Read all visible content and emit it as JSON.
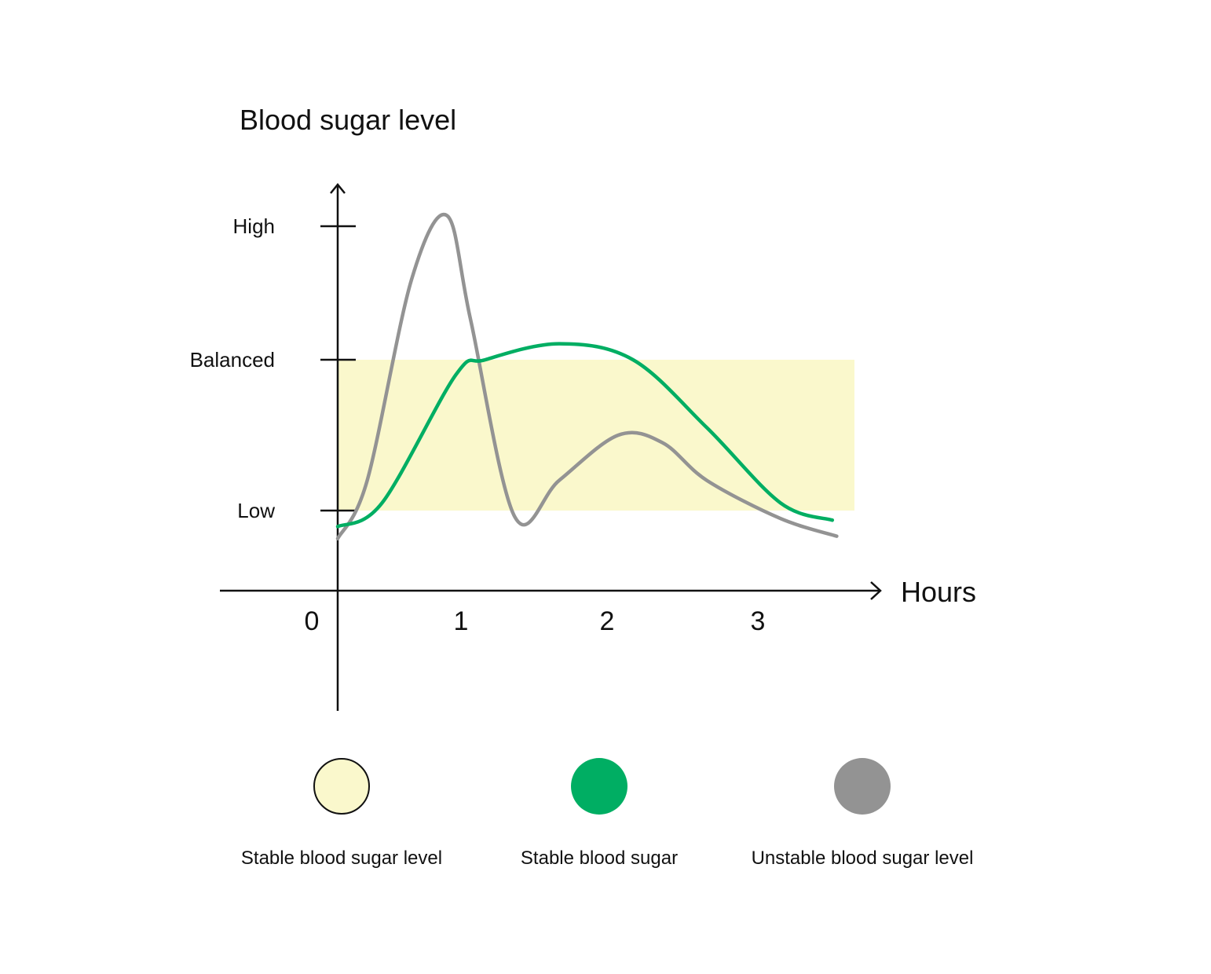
{
  "colors": {
    "band": "#FAF8CC",
    "stable": "#00AE63",
    "unstable": "#939393",
    "axis": "#111111"
  },
  "chart_data": {
    "type": "line",
    "ylabel": "Blood sugar level",
    "xlabel": "Hours",
    "x_ticks": [
      0,
      1,
      2,
      3
    ],
    "y_ticks": [
      "Low",
      "Balanced",
      "High"
    ],
    "xlim": [
      0,
      3.4
    ],
    "band": {
      "name": "Stable blood sugar level",
      "from": "Low",
      "to": "Balanced",
      "x_range": [
        0,
        3.5
      ]
    },
    "series": [
      {
        "name": "Stable blood sugar",
        "color": "#00AE63",
        "x": [
          0,
          0.3,
          0.8,
          1.0,
          1.5,
          2.0,
          2.5,
          3.0,
          3.35
        ],
        "y": [
          0.8,
          1.05,
          1.9,
          2.0,
          2.12,
          2.0,
          1.55,
          1.05,
          0.88
        ]
      },
      {
        "name": "Unstable blood sugar level",
        "color": "#939393",
        "x": [
          0,
          0.2,
          0.5,
          0.74,
          0.9,
          1.2,
          1.5,
          1.9,
          2.2,
          2.5,
          3.0,
          3.38
        ],
        "y": [
          0.65,
          1.2,
          2.6,
          3.08,
          2.3,
          0.92,
          1.2,
          1.5,
          1.45,
          1.2,
          0.9,
          0.68
        ]
      }
    ]
  },
  "legend": [
    {
      "label": "Stable blood sugar level",
      "color": "#FAF8CC",
      "outlined": true
    },
    {
      "label": "Stable blood sugar",
      "color": "#00AE63",
      "outlined": false
    },
    {
      "label": "Unstable blood sugar level",
      "color": "#939393",
      "outlined": false
    }
  ]
}
